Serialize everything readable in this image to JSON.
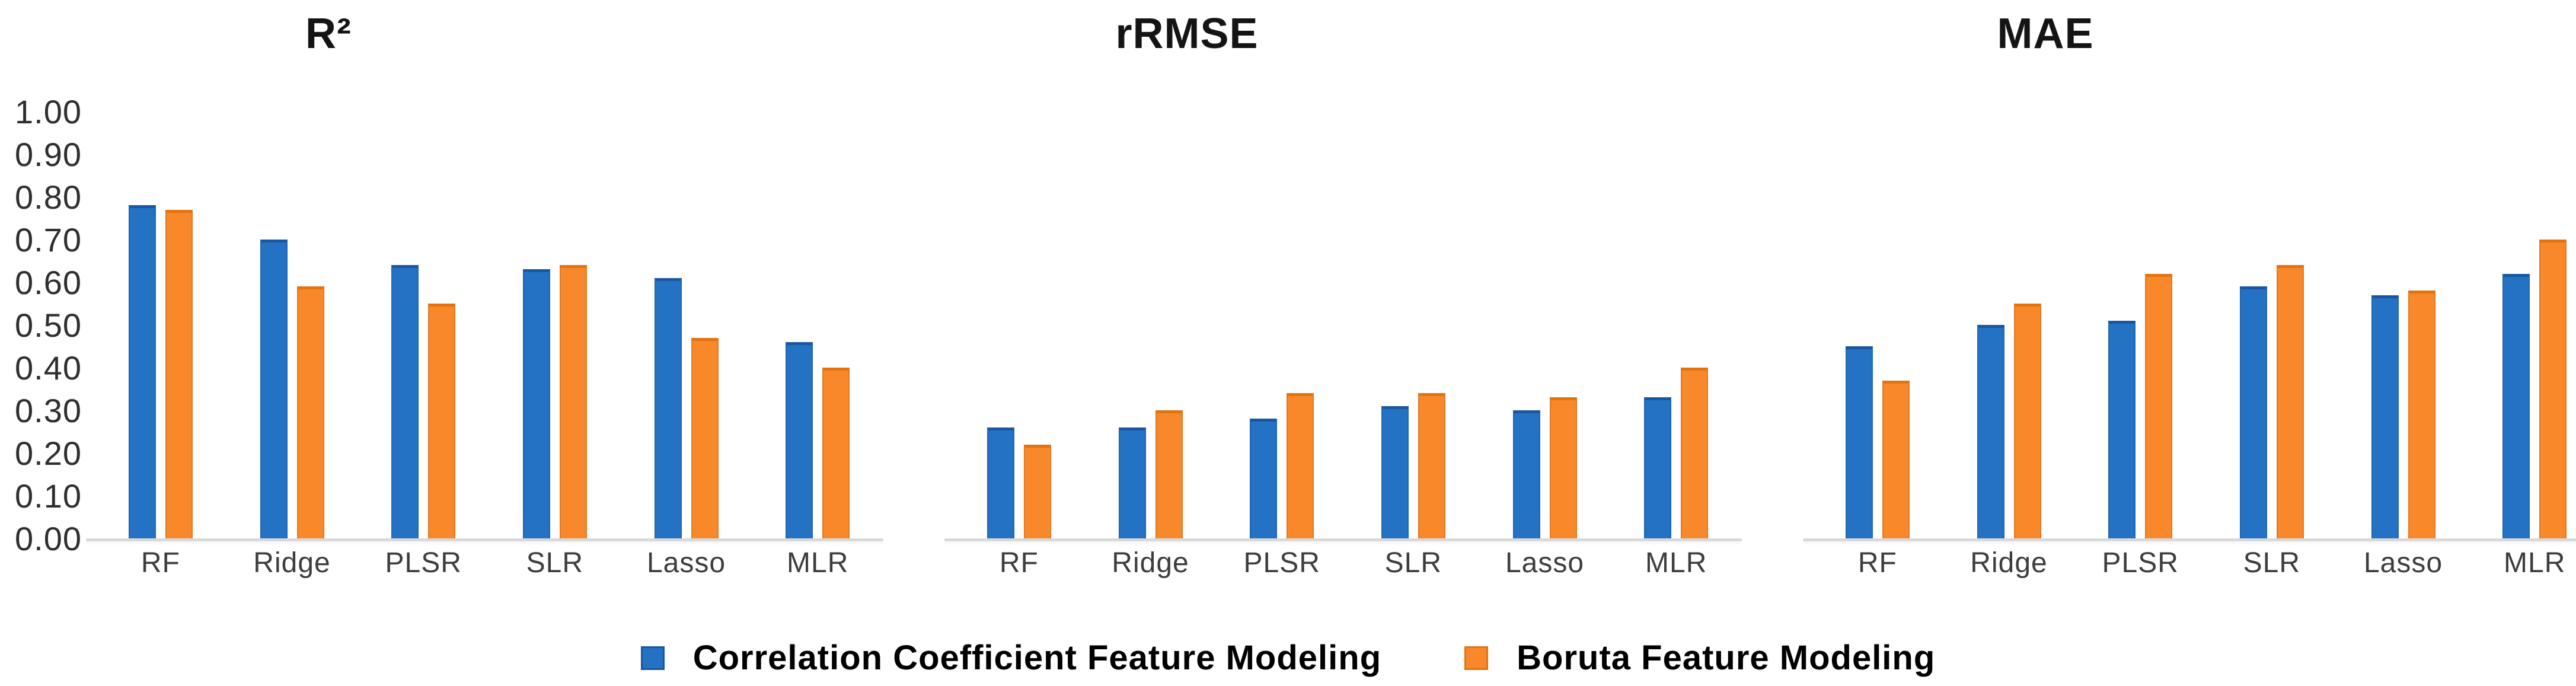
{
  "figure": {
    "background": "#ffffff",
    "series_colors": {
      "blue": "#2472c4",
      "blue_edge": "#1a57a0",
      "orange": "#f9882a",
      "orange_edge": "#e2730f",
      "axis_line": "#d9d9d9"
    },
    "legend": {
      "items": [
        {
          "label": "Correlation Coefficient Feature Modeling",
          "color": "#2472c4",
          "edge": "#1a57a0"
        },
        {
          "label": "Boruta Feature Modeling",
          "color": "#f9882a",
          "edge": "#e2730f"
        }
      ]
    }
  },
  "chart_data": [
    {
      "type": "bar",
      "title": "R²",
      "categories": [
        "RF",
        "Ridge",
        "PLSR",
        "SLR",
        "Lasso",
        "MLR"
      ],
      "series": [
        {
          "name": "Correlation Coefficient Feature Modeling",
          "color": "#2472c4",
          "edge": "#1a57a0",
          "values": [
            0.78,
            0.7,
            0.64,
            0.63,
            0.61,
            0.46
          ]
        },
        {
          "name": "Boruta Feature Modeling",
          "color": "#f9882a",
          "edge": "#e2730f",
          "values": [
            0.77,
            0.59,
            0.55,
            0.64,
            0.47,
            0.4
          ]
        }
      ],
      "xlabel": "",
      "ylabel": "",
      "ylim": [
        0,
        1
      ],
      "yticks": [
        "1.00",
        "0.90",
        "0.80",
        "0.70",
        "0.60",
        "0.50",
        "0.40",
        "0.30",
        "0.20",
        "0.10",
        "0.00"
      ],
      "show_y_axis": true,
      "grid": false,
      "legend_position": "bottom"
    },
    {
      "type": "bar",
      "title": "rRMSE",
      "categories": [
        "RF",
        "Ridge",
        "PLSR",
        "SLR",
        "Lasso",
        "MLR"
      ],
      "series": [
        {
          "name": "Correlation Coefficient Feature Modeling",
          "color": "#2472c4",
          "edge": "#1a57a0",
          "values": [
            0.26,
            0.26,
            0.28,
            0.31,
            0.3,
            0.33
          ]
        },
        {
          "name": "Boruta Feature Modeling",
          "color": "#f9882a",
          "edge": "#e2730f",
          "values": [
            0.22,
            0.3,
            0.34,
            0.34,
            0.33,
            0.4
          ]
        }
      ],
      "xlabel": "",
      "ylabel": "",
      "ylim": [
        0,
        1
      ],
      "yticks": [],
      "show_y_axis": false,
      "grid": false,
      "legend_position": "bottom"
    },
    {
      "type": "bar",
      "title": "MAE",
      "categories": [
        "RF",
        "Ridge",
        "PLSR",
        "SLR",
        "Lasso",
        "MLR"
      ],
      "series": [
        {
          "name": "Correlation Coefficient Feature Modeling",
          "color": "#2472c4",
          "edge": "#1a57a0",
          "values": [
            0.45,
            0.5,
            0.51,
            0.59,
            0.57,
            0.62
          ]
        },
        {
          "name": "Boruta Feature Modeling",
          "color": "#f9882a",
          "edge": "#e2730f",
          "values": [
            0.37,
            0.55,
            0.62,
            0.64,
            0.58,
            0.7
          ]
        }
      ],
      "xlabel": "",
      "ylabel": "",
      "ylim": [
        0,
        1
      ],
      "yticks": [],
      "show_y_axis": false,
      "grid": false,
      "legend_position": "bottom"
    }
  ]
}
